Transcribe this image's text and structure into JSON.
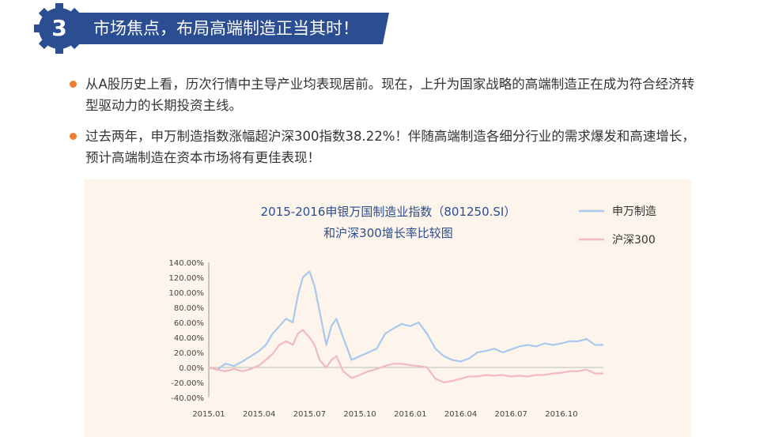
{
  "banner": {
    "number": "3",
    "title": "市场焦点，布局高端制造正当其时！"
  },
  "bullets": [
    "从A股历史上看，历次行情中主导产业均表现居前。现在，上升为国家战略的高端制造正在成为符合经济转型驱动力的长期投资主线。",
    "过去两年，申万制造指数涨幅超沪深300指数38.22%！伴随高端制造各细分行业的需求爆发和高速增长，预计高端制造在资本市场将有更佳表现！"
  ],
  "colors": {
    "banner": "#2b4d92",
    "bullet": "#ef7d31",
    "title": "#2b4d92",
    "series1": "#a8c8ee",
    "series2": "#f3b8c0",
    "panel": "#fdf5ec"
  },
  "chart_data": {
    "type": "line",
    "title_lines": [
      "2015-2016申银万国制造业指数（801250.SI）",
      "和沪深300增长率比较图"
    ],
    "xlabel": "",
    "ylabel": "",
    "ylim": [
      -40,
      140
    ],
    "yticks": [
      "140.00%",
      "120.00%",
      "100.00%",
      "80.00%",
      "60.00%",
      "40.00%",
      "20.00%",
      "0.00%",
      "-20.00%",
      "-40.00%"
    ],
    "xticks": [
      "2015.01",
      "2015.04",
      "2015.07",
      "2015.10",
      "2016.01",
      "2016.04",
      "2016.07",
      "2016.10"
    ],
    "x": [
      0,
      0.5,
      1,
      1.5,
      2,
      2.5,
      3,
      3.4,
      3.8,
      4.2,
      4.6,
      5,
      5.3,
      5.6,
      6,
      6.3,
      6.6,
      7,
      7.3,
      7.6,
      8,
      8.5,
      9,
      9.5,
      10,
      10.5,
      11,
      11.5,
      12,
      12.5,
      13,
      13.5,
      14,
      14.5,
      15,
      15.5,
      16,
      16.5,
      17,
      17.5,
      18,
      18.5,
      19,
      19.5,
      20,
      20.5,
      21,
      21.5,
      22,
      22.5,
      23,
      23.5
    ],
    "series": [
      {
        "name": "申万制造",
        "values": [
          0,
          -3,
          5,
          2,
          8,
          15,
          22,
          30,
          45,
          55,
          65,
          60,
          95,
          120,
          128,
          108,
          75,
          30,
          55,
          65,
          40,
          10,
          15,
          20,
          25,
          45,
          52,
          58,
          55,
          60,
          45,
          25,
          15,
          10,
          8,
          12,
          20,
          22,
          25,
          20,
          24,
          28,
          30,
          28,
          32,
          30,
          32,
          35,
          35,
          38,
          30,
          30
        ]
      },
      {
        "name": "沪深300",
        "values": [
          0,
          -3,
          -5,
          -2,
          -5,
          -2,
          3,
          10,
          18,
          30,
          35,
          30,
          45,
          50,
          40,
          30,
          10,
          0,
          10,
          15,
          -5,
          -14,
          -10,
          -5,
          -2,
          2,
          5,
          5,
          3,
          2,
          0,
          -15,
          -20,
          -18,
          -15,
          -12,
          -12,
          -10,
          -11,
          -10,
          -12,
          -11,
          -12,
          -10,
          -10,
          -8,
          -7,
          -5,
          -5,
          -3,
          -8,
          -8
        ]
      }
    ]
  }
}
